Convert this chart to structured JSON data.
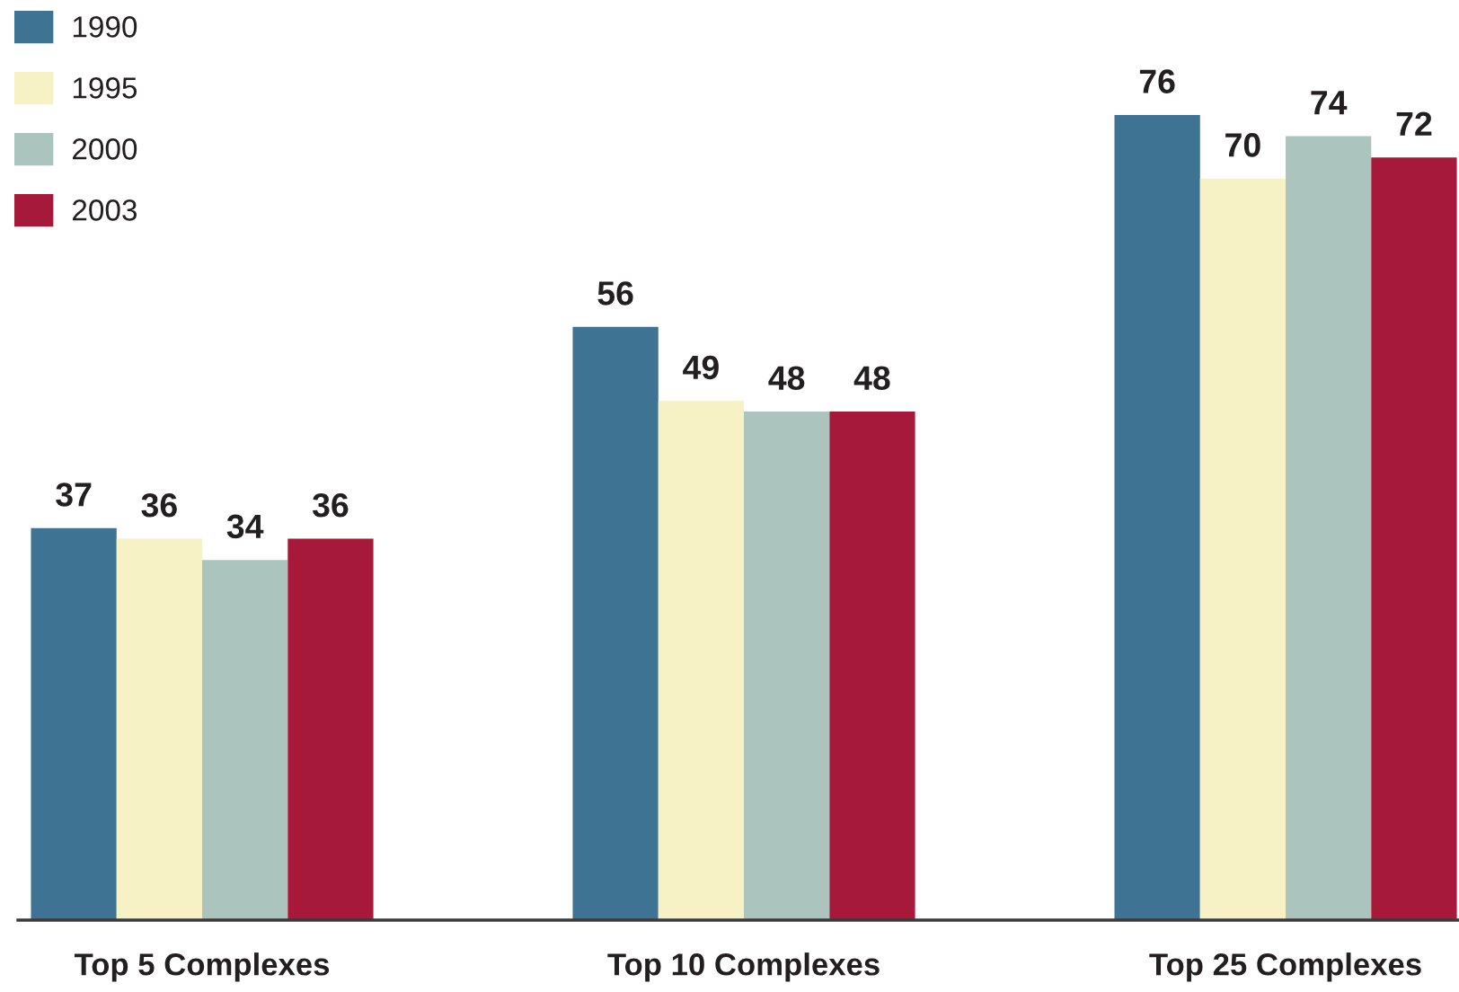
{
  "chart_data": {
    "type": "bar",
    "categories": [
      "Top 5 Complexes",
      "Top 10 Complexes",
      "Top 25 Complexes"
    ],
    "series": [
      {
        "name": "1990",
        "color": "#3e7393",
        "values": [
          37,
          56,
          76
        ]
      },
      {
        "name": "1995",
        "color": "#f7f1c6",
        "values": [
          36,
          49,
          70
        ]
      },
      {
        "name": "2000",
        "color": "#abc4bd",
        "values": [
          34,
          48,
          74
        ]
      },
      {
        "name": "2003",
        "color": "#a6193a",
        "values": [
          36,
          48,
          72
        ]
      }
    ],
    "data_labels": true,
    "legend": "top left",
    "tick_labels": "x",
    "grid": false
  }
}
